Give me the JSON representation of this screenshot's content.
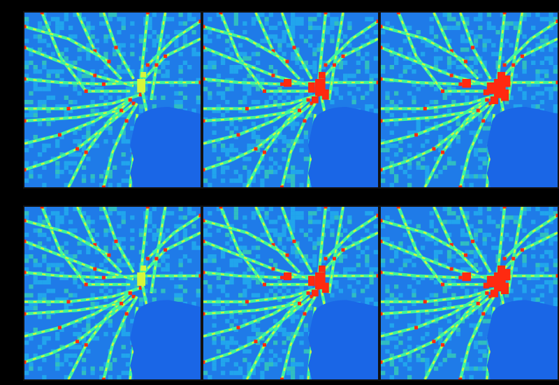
{
  "figure": {
    "layout": {
      "rows": 2,
      "cols": 3
    },
    "colormap": "jet",
    "colors": {
      "background": "#000000",
      "water": "#1a66e6",
      "low": "#1f7be8",
      "mid_low": "#22c8f0",
      "mid": "#3ef5a0",
      "mid_high": "#d8f53a",
      "high": "#ff2a10"
    },
    "panels": [
      {
        "row": 1,
        "col": 1,
        "hotspot_level": 0.35
      },
      {
        "row": 1,
        "col": 2,
        "hotspot_level": 0.75
      },
      {
        "row": 1,
        "col": 3,
        "hotspot_level": 1.0
      },
      {
        "row": 2,
        "col": 1,
        "hotspot_level": 0.35
      },
      {
        "row": 2,
        "col": 2,
        "hotspot_level": 0.75
      },
      {
        "row": 2,
        "col": 3,
        "hotspot_level": 1.0
      }
    ]
  }
}
